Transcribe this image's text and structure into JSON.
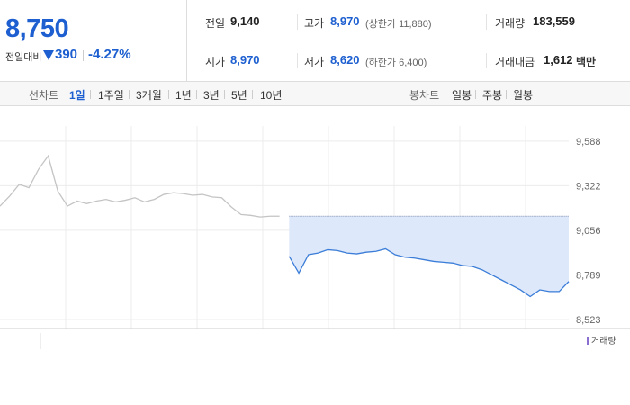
{
  "quote": {
    "price": "8,750",
    "change_label": "전일대비",
    "change": "390",
    "change_rate": "-4.27%"
  },
  "summary": [
    {
      "label": "전일",
      "value": "9,140"
    },
    {
      "label": "고가",
      "value": "8,970",
      "note": "(상한가 11,880)"
    },
    {
      "label": "거래량",
      "value": "183,559"
    },
    {
      "label": "시가",
      "value": "8,970"
    },
    {
      "label": "저가",
      "value": "8,620",
      "note": "(하한가 6,400)"
    },
    {
      "label": "거래대금",
      "value": "1,612",
      "unit": "백만"
    }
  ],
  "tabs": {
    "line_label": "선차트",
    "line_periods": [
      "1일",
      "1주일",
      "3개월",
      "1년",
      "3년",
      "5년",
      "10년"
    ],
    "candle_label": "봉차트",
    "candle_periods": [
      "일봉",
      "주봉",
      "월봉"
    ]
  },
  "chart_data": {
    "type": "line",
    "categories": [
      null,
      null,
      null,
      null,
      null,
      null,
      null,
      null,
      null,
      null,
      null,
      null,
      null,
      null,
      null,
      null,
      null,
      null,
      null,
      null,
      null,
      null,
      null,
      null,
      null,
      null,
      null,
      null,
      null,
      null,
      null,
      null,
      null,
      null,
      null,
      null,
      null,
      null,
      null,
      null,
      null,
      null,
      null,
      null,
      null,
      null,
      null,
      null,
      null,
      null,
      null,
      null,
      null,
      null,
      null,
      null,
      null,
      null,
      null,
      null
    ],
    "series": [
      {
        "color": "#c4c4c4",
        "values": [
          9200,
          9260,
          9330,
          9310,
          9420,
          9500,
          9290,
          9200,
          9230,
          9215,
          9230,
          9240,
          9225,
          9235,
          9250,
          9225,
          9240,
          9270,
          9280,
          9275,
          9265,
          9270,
          9255,
          9250,
          9195,
          9150,
          9145,
          9135,
          9140,
          9140,
          null,
          null,
          null,
          null,
          null,
          null,
          null,
          null,
          null,
          null,
          null,
          null,
          null,
          null,
          null,
          null,
          null,
          null,
          null,
          null,
          null,
          null,
          null,
          null,
          null,
          null,
          null,
          null,
          null,
          null
        ]
      },
      {
        "color": "#3b7dd8",
        "fill": "#dde8fa",
        "values": [
          null,
          null,
          null,
          null,
          null,
          null,
          null,
          null,
          null,
          null,
          null,
          null,
          null,
          null,
          null,
          null,
          null,
          null,
          null,
          null,
          null,
          null,
          null,
          null,
          null,
          null,
          null,
          null,
          null,
          null,
          8900,
          8800,
          8910,
          8920,
          8940,
          8935,
          8920,
          8915,
          8925,
          8930,
          8945,
          8910,
          8895,
          8890,
          8880,
          8870,
          8865,
          8860,
          8845,
          8840,
          8820,
          8790,
          8760,
          8730,
          8700,
          8660,
          8700,
          8690,
          8690,
          8750
        ]
      }
    ],
    "reference_line": 9140,
    "ylim": [
      8469,
      9679
    ],
    "yticks": [
      {
        "value": 8523,
        "label": "8,523"
      },
      {
        "value": 8789,
        "label": "8,789"
      },
      {
        "value": 9056,
        "label": "9,056"
      },
      {
        "value": 9322,
        "label": "9,322"
      },
      {
        "value": 9588,
        "label": "9,588"
      }
    ],
    "grid": true,
    "legend_label": "거래량",
    "legend_color": "#8a6fd1"
  }
}
